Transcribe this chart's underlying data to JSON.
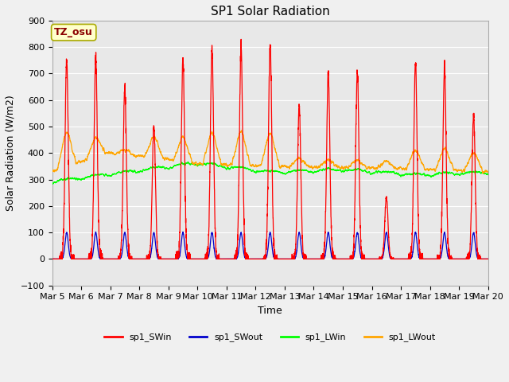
{
  "title": "SP1 Solar Radiation",
  "ylabel": "Solar Radiation (W/m2)",
  "xlabel": "Time",
  "ylim": [
    -100,
    900
  ],
  "xlim": [
    0,
    15
  ],
  "xtick_labels": [
    "Mar 5",
    "Mar 6",
    "Mar 7",
    "Mar 8",
    "Mar 9",
    "Mar 10",
    "Mar 11",
    "Mar 12",
    "Mar 13",
    "Mar 14",
    "Mar 15",
    "Mar 16",
    "Mar 17",
    "Mar 18",
    "Mar 19",
    "Mar 20"
  ],
  "annotation_text": "TZ_osu",
  "annotation_color": "#8B0000",
  "annotation_bg": "#FFFFCC",
  "annotation_border": "#AAAA00",
  "colors": {
    "SWin": "#FF0000",
    "SWout": "#0000CC",
    "LWin": "#00FF00",
    "LWout": "#FFA500"
  },
  "legend_labels": [
    "sp1_SWin",
    "sp1_SWout",
    "sp1_LWin",
    "sp1_LWout"
  ],
  "background_color": "#E8E8E8",
  "grid_color": "#FFFFFF",
  "title_fontsize": 11,
  "label_fontsize": 9
}
